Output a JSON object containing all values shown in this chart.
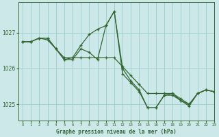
{
  "title": "Graphe pression niveau de la mer (hPa)",
  "bg_color": "#cce8e8",
  "grid_color": "#99cccc",
  "line_color": "#336633",
  "xlim": [
    -0.5,
    23
  ],
  "ylim": [
    1024.55,
    1027.85
  ],
  "yticks": [
    1025,
    1026,
    1027
  ],
  "xticks": [
    0,
    1,
    2,
    3,
    4,
    5,
    6,
    7,
    8,
    9,
    10,
    11,
    12,
    13,
    14,
    15,
    16,
    17,
    18,
    19,
    20,
    21,
    22,
    23
  ],
  "series1_x": [
    0,
    1,
    2,
    3,
    4,
    5,
    6,
    7,
    8,
    9,
    10,
    11,
    12,
    13,
    14,
    15,
    16,
    17,
    18,
    19,
    20,
    21,
    22,
    23
  ],
  "series1_y": [
    1026.75,
    1026.75,
    1026.85,
    1026.8,
    1026.55,
    1026.3,
    1026.3,
    1026.3,
    1026.3,
    1026.3,
    1026.3,
    1026.3,
    1026.05,
    1025.8,
    1025.55,
    1025.3,
    1025.3,
    1025.3,
    1025.3,
    1025.15,
    1025.0,
    1025.3,
    1025.4,
    1025.35
  ],
  "series2_x": [
    0,
    1,
    2,
    3,
    4,
    5,
    6,
    7,
    8,
    9,
    10,
    11,
    12,
    13,
    14,
    15,
    16,
    17,
    18,
    19,
    20,
    21,
    22,
    23
  ],
  "series2_y": [
    1026.75,
    1026.75,
    1026.85,
    1026.85,
    1026.55,
    1026.25,
    1026.3,
    1026.65,
    1026.95,
    1027.1,
    1027.2,
    1027.6,
    1026.0,
    1025.65,
    1025.4,
    1024.9,
    1024.9,
    1025.25,
    1025.3,
    1025.1,
    1025.0,
    1025.3,
    1025.4,
    1025.35
  ],
  "series3_x": [
    0,
    1,
    2,
    3,
    4,
    5,
    6,
    7,
    8,
    9,
    10,
    11,
    12,
    13,
    14,
    15,
    16,
    17,
    18,
    19,
    20,
    21,
    22,
    23
  ],
  "series3_y": [
    1026.75,
    1026.75,
    1026.85,
    1026.85,
    1026.55,
    1026.25,
    1026.25,
    1026.55,
    1026.45,
    1026.25,
    1027.2,
    1027.6,
    1025.85,
    1025.6,
    1025.35,
    1024.9,
    1024.9,
    1025.25,
    1025.25,
    1025.1,
    1024.95,
    1025.3,
    1025.4,
    1025.35
  ]
}
